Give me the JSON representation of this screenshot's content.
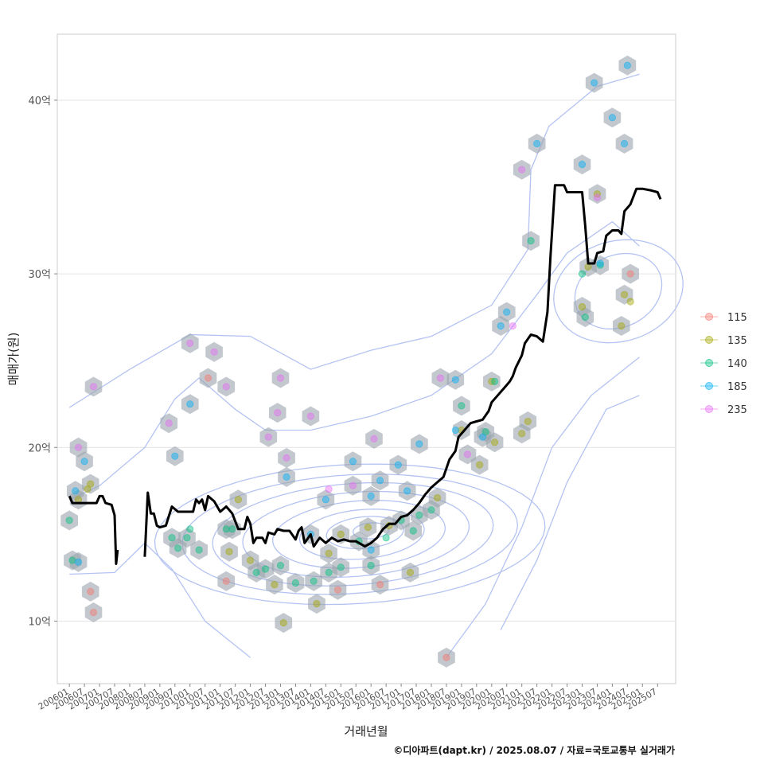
{
  "chart_data": {
    "type": "scatter",
    "xlabel": "거래년월",
    "ylabel": "매매가(원)",
    "caption": "©디아파트(dapt.kr) / 2025.08.07 / 자료=국토교통부 실거래가",
    "xlim": [
      2005.6,
      2026.1
    ],
    "ylim": [
      6.4,
      43.8
    ],
    "y_unit": "억",
    "grid": "horizontal",
    "legend_position": "right",
    "y_ticks": [
      {
        "value": 10,
        "label": "10억"
      },
      {
        "value": 20,
        "label": "20억"
      },
      {
        "value": 30,
        "label": "30억"
      },
      {
        "value": 40,
        "label": "40억"
      }
    ],
    "x_tick_labels": [
      "200601",
      "200607",
      "200701",
      "200707",
      "200801",
      "200807",
      "200901",
      "200907",
      "201001",
      "201007",
      "201101",
      "201107",
      "201201",
      "201207",
      "201301",
      "201307",
      "201401",
      "201407",
      "201501",
      "201507",
      "201601",
      "201607",
      "201701",
      "201707",
      "201801",
      "201807",
      "201901",
      "201907",
      "202001",
      "202007",
      "202101",
      "202107",
      "202201",
      "202207",
      "202301",
      "202307",
      "202401",
      "202407",
      "202501",
      "202507"
    ],
    "series": [
      {
        "name": "115",
        "color": "#F8766D",
        "points": [
          [
            2006.7,
            11.7
          ],
          [
            2006.8,
            10.5
          ],
          [
            2010.6,
            24.0
          ],
          [
            2018.5,
            7.9
          ],
          [
            2024.6,
            30.0
          ],
          [
            2011.2,
            12.3
          ],
          [
            2014.9,
            11.8
          ],
          [
            2016.3,
            12.1
          ]
        ]
      },
      {
        "name": "135",
        "color": "#A3A500",
        "points": [
          [
            2006.3,
            17.0
          ],
          [
            2006.6,
            17.6
          ],
          [
            2006.7,
            17.9
          ],
          [
            2011.3,
            14.0
          ],
          [
            2011.6,
            17.0
          ],
          [
            2012.0,
            13.5
          ],
          [
            2012.8,
            12.1
          ],
          [
            2013.1,
            9.9
          ],
          [
            2014.2,
            11.0
          ],
          [
            2014.6,
            13.9
          ],
          [
            2015.0,
            15.0
          ],
          [
            2015.9,
            15.4
          ],
          [
            2016.6,
            15.5
          ],
          [
            2017.3,
            12.8
          ],
          [
            2018.2,
            17.1
          ],
          [
            2019.0,
            21.0
          ],
          [
            2019.6,
            19.0
          ],
          [
            2020.1,
            20.3
          ],
          [
            2021.0,
            20.8
          ],
          [
            2021.2,
            21.5
          ],
          [
            2023.0,
            28.1
          ],
          [
            2023.2,
            30.4
          ],
          [
            2023.5,
            34.6
          ],
          [
            2024.4,
            28.8
          ],
          [
            2024.6,
            28.4
          ],
          [
            2024.3,
            27.0
          ],
          [
            2020.0,
            23.8
          ]
        ]
      },
      {
        "name": "140",
        "color": "#00BF7D",
        "points": [
          [
            2006.0,
            15.8
          ],
          [
            2006.1,
            13.5
          ],
          [
            2009.4,
            14.8
          ],
          [
            2009.6,
            14.2
          ],
          [
            2009.9,
            14.8
          ],
          [
            2010.0,
            15.3
          ],
          [
            2010.3,
            14.1
          ],
          [
            2011.2,
            15.3
          ],
          [
            2011.4,
            15.3
          ],
          [
            2012.2,
            12.8
          ],
          [
            2012.5,
            13.0
          ],
          [
            2013.0,
            13.2
          ],
          [
            2013.5,
            12.2
          ],
          [
            2014.1,
            12.3
          ],
          [
            2014.6,
            12.8
          ],
          [
            2015.0,
            13.1
          ],
          [
            2015.6,
            14.6
          ],
          [
            2016.0,
            13.2
          ],
          [
            2016.5,
            14.8
          ],
          [
            2017.0,
            15.8
          ],
          [
            2017.4,
            15.2
          ],
          [
            2017.6,
            16.1
          ],
          [
            2018.0,
            16.4
          ],
          [
            2019.0,
            22.4
          ],
          [
            2020.1,
            23.8
          ],
          [
            2021.3,
            31.9
          ],
          [
            2023.0,
            30.0
          ],
          [
            2023.1,
            27.5
          ],
          [
            2023.6,
            30.5
          ],
          [
            2019.8,
            20.9
          ]
        ]
      },
      {
        "name": "185",
        "color": "#00B0F6",
        "points": [
          [
            2006.2,
            17.5
          ],
          [
            2006.3,
            13.4
          ],
          [
            2006.5,
            19.2
          ],
          [
            2009.5,
            19.5
          ],
          [
            2010.0,
            22.5
          ],
          [
            2013.2,
            18.3
          ],
          [
            2014.0,
            15.0
          ],
          [
            2014.5,
            17.0
          ],
          [
            2015.4,
            19.2
          ],
          [
            2016.0,
            17.2
          ],
          [
            2016.3,
            18.1
          ],
          [
            2016.9,
            19.0
          ],
          [
            2017.2,
            17.5
          ],
          [
            2017.6,
            20.2
          ],
          [
            2018.8,
            21.0
          ],
          [
            2018.8,
            23.9
          ],
          [
            2019.7,
            20.6
          ],
          [
            2020.3,
            27.0
          ],
          [
            2020.5,
            27.8
          ],
          [
            2021.5,
            37.5
          ],
          [
            2023.0,
            36.3
          ],
          [
            2023.4,
            41.0
          ],
          [
            2024.0,
            39.0
          ],
          [
            2024.4,
            37.5
          ],
          [
            2024.5,
            42.0
          ],
          [
            2023.6,
            30.6
          ],
          [
            2016.0,
            14.1
          ]
        ]
      },
      {
        "name": "235",
        "color": "#E76BF3",
        "points": [
          [
            2006.3,
            20.0
          ],
          [
            2006.8,
            23.5
          ],
          [
            2009.3,
            21.4
          ],
          [
            2010.0,
            26.0
          ],
          [
            2010.8,
            25.5
          ],
          [
            2011.2,
            23.5
          ],
          [
            2012.6,
            20.6
          ],
          [
            2012.9,
            22.0
          ],
          [
            2013.0,
            24.0
          ],
          [
            2013.2,
            19.4
          ],
          [
            2014.0,
            21.8
          ],
          [
            2014.6,
            17.6
          ],
          [
            2015.4,
            17.8
          ],
          [
            2016.1,
            20.5
          ],
          [
            2018.3,
            24.0
          ],
          [
            2019.2,
            19.6
          ],
          [
            2020.7,
            27.0
          ],
          [
            2021.0,
            36.0
          ],
          [
            2023.5,
            34.4
          ]
        ]
      }
    ],
    "price_line_segments": [
      [
        [
          2006.0,
          17.2
        ],
        [
          2006.1,
          16.8
        ],
        [
          2006.3,
          16.8
        ],
        [
          2006.6,
          16.8
        ],
        [
          2006.9,
          16.8
        ],
        [
          2007.0,
          17.2
        ],
        [
          2007.1,
          17.2
        ],
        [
          2007.2,
          16.8
        ],
        [
          2007.4,
          16.7
        ],
        [
          2007.5,
          16.1
        ],
        [
          2007.55,
          13.3
        ],
        [
          2007.6,
          14.1
        ]
      ],
      [
        [
          2008.5,
          13.7
        ],
        [
          2008.6,
          17.4
        ],
        [
          2008.7,
          16.2
        ],
        [
          2008.8,
          16.2
        ],
        [
          2008.9,
          15.5
        ],
        [
          2009.0,
          15.4
        ],
        [
          2009.2,
          15.5
        ],
        [
          2009.4,
          16.6
        ],
        [
          2009.6,
          16.3
        ],
        [
          2009.8,
          16.3
        ],
        [
          2010.1,
          16.3
        ],
        [
          2010.2,
          17.0
        ],
        [
          2010.3,
          16.8
        ],
        [
          2010.4,
          17.0
        ],
        [
          2010.5,
          16.4
        ],
        [
          2010.6,
          17.2
        ],
        [
          2010.8,
          16.9
        ],
        [
          2011.0,
          16.3
        ],
        [
          2011.2,
          16.6
        ],
        [
          2011.4,
          16.2
        ],
        [
          2011.6,
          15.3
        ],
        [
          2011.8,
          15.3
        ],
        [
          2011.9,
          16.0
        ],
        [
          2012.0,
          15.6
        ],
        [
          2012.1,
          14.5
        ],
        [
          2012.2,
          14.8
        ],
        [
          2012.4,
          14.8
        ],
        [
          2012.5,
          14.5
        ],
        [
          2012.6,
          15.1
        ],
        [
          2012.8,
          15.0
        ],
        [
          2012.9,
          15.3
        ],
        [
          2013.1,
          15.2
        ],
        [
          2013.3,
          15.2
        ],
        [
          2013.5,
          14.7
        ],
        [
          2013.6,
          15.2
        ],
        [
          2013.7,
          15.4
        ],
        [
          2013.8,
          14.5
        ],
        [
          2014.0,
          15.0
        ],
        [
          2014.1,
          14.3
        ],
        [
          2014.3,
          14.8
        ],
        [
          2014.5,
          14.5
        ],
        [
          2014.7,
          14.8
        ],
        [
          2014.9,
          14.6
        ],
        [
          2015.1,
          14.7
        ],
        [
          2015.3,
          14.6
        ],
        [
          2015.5,
          14.6
        ],
        [
          2015.8,
          14.3
        ],
        [
          2016.0,
          14.5
        ],
        [
          2016.2,
          14.8
        ],
        [
          2016.4,
          15.3
        ],
        [
          2016.6,
          15.6
        ],
        [
          2016.8,
          15.6
        ],
        [
          2017.0,
          16.0
        ],
        [
          2017.2,
          16.1
        ],
        [
          2017.4,
          16.4
        ],
        [
          2017.6,
          16.8
        ],
        [
          2017.8,
          17.3
        ],
        [
          2018.0,
          17.7
        ],
        [
          2018.2,
          18.0
        ],
        [
          2018.4,
          18.3
        ],
        [
          2018.6,
          19.3
        ],
        [
          2018.8,
          19.8
        ],
        [
          2018.9,
          20.6
        ],
        [
          2019.1,
          21.0
        ],
        [
          2019.3,
          21.4
        ],
        [
          2019.5,
          21.5
        ],
        [
          2019.7,
          21.6
        ],
        [
          2019.9,
          22.1
        ],
        [
          2020.0,
          22.6
        ],
        [
          2020.2,
          23.0
        ],
        [
          2020.4,
          23.4
        ],
        [
          2020.6,
          23.8
        ],
        [
          2020.7,
          24.1
        ],
        [
          2020.8,
          24.6
        ],
        [
          2021.0,
          25.3
        ],
        [
          2021.1,
          26.0
        ],
        [
          2021.3,
          26.5
        ],
        [
          2021.5,
          26.4
        ],
        [
          2021.7,
          26.1
        ],
        [
          2021.85,
          27.8
        ],
        [
          2021.95,
          31.0
        ],
        [
          2022.1,
          35.1
        ],
        [
          2022.4,
          35.1
        ],
        [
          2022.5,
          34.7
        ],
        [
          2022.8,
          34.7
        ],
        [
          2023.0,
          34.7
        ],
        [
          2023.1,
          32.8
        ],
        [
          2023.2,
          30.6
        ],
        [
          2023.4,
          30.6
        ],
        [
          2023.5,
          31.2
        ],
        [
          2023.7,
          31.3
        ],
        [
          2023.8,
          32.2
        ],
        [
          2024.0,
          32.5
        ],
        [
          2024.2,
          32.5
        ],
        [
          2024.3,
          32.3
        ],
        [
          2024.4,
          33.6
        ],
        [
          2024.6,
          34.0
        ],
        [
          2024.8,
          34.9
        ],
        [
          2025.0,
          34.9
        ],
        [
          2025.3,
          34.8
        ],
        [
          2025.5,
          34.7
        ],
        [
          2025.6,
          34.3
        ]
      ]
    ]
  }
}
